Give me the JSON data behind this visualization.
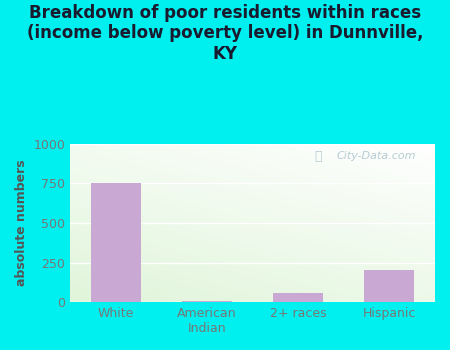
{
  "categories": [
    "White",
    "American\nIndian",
    "2+ races",
    "Hispanic"
  ],
  "values": [
    750,
    10,
    55,
    200
  ],
  "bar_color": "#c9a8d4",
  "title": "Breakdown of poor residents within races\n(income below poverty level) in Dunnville,\nKY",
  "ylabel": "absolute numbers",
  "ylim": [
    0,
    1000
  ],
  "yticks": [
    0,
    250,
    500,
    750,
    1000
  ],
  "outer_bg": "#00efef",
  "plot_bg_color": "#e8f5e0",
  "title_fontsize": 12,
  "ylabel_fontsize": 9,
  "tick_fontsize": 9,
  "watermark": "City-Data.com",
  "bar_width": 0.55,
  "ylabel_color": "#555555",
  "title_color": "#1a1a2e",
  "tick_color": "#777777"
}
